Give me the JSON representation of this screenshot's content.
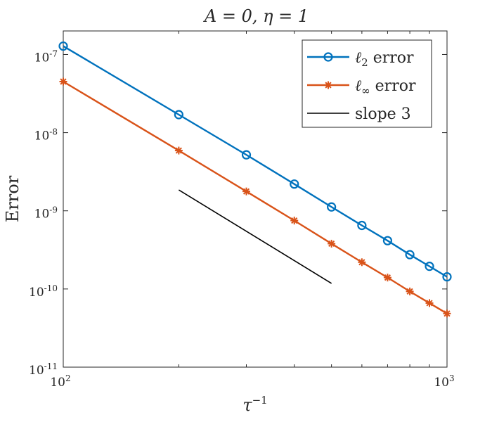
{
  "chart_data": {
    "type": "line",
    "title": "A = 0,  η = 1",
    "xlabel": "τ⁻¹",
    "ylabel": "Error",
    "x_scale": "log",
    "y_scale": "log",
    "xlim": [
      100,
      1000
    ],
    "ylim": [
      1e-11,
      2e-07
    ],
    "x_ticks": [
      {
        "base": "10",
        "exp": "2"
      },
      {
        "base": "10",
        "exp": "3"
      }
    ],
    "y_ticks": [
      {
        "base": "10",
        "exp": "-11",
        "value": 1e-11
      },
      {
        "base": "10",
        "exp": "-10",
        "value": 1e-10
      },
      {
        "base": "10",
        "exp": "-9",
        "value": 1e-09
      },
      {
        "base": "10",
        "exp": "-8",
        "value": 1e-08
      },
      {
        "base": "10",
        "exp": "-7",
        "value": 1e-07
      }
    ],
    "grid": false,
    "legend_position": "top-right",
    "series": [
      {
        "name": "ℓ2 error",
        "name_base": "ℓ",
        "name_sub": "2",
        "name_rest": " error",
        "color": "#0072BD",
        "marker": "circle",
        "x": [
          100,
          200,
          300,
          400,
          500,
          600,
          700,
          800,
          900,
          1000
        ],
        "y": [
          1.28e-07,
          1.7e-08,
          5.2e-09,
          2.2e-09,
          1.12e-09,
          6.5e-10,
          4.15e-10,
          2.75e-10,
          1.95e-10,
          1.43e-10
        ]
      },
      {
        "name": "ℓ∞ error",
        "name_base": "ℓ",
        "name_sub": "∞",
        "name_rest": " error",
        "color": "#D95319",
        "marker": "asterisk",
        "x": [
          100,
          200,
          300,
          400,
          500,
          600,
          700,
          800,
          900,
          1000
        ],
        "y": [
          4.5e-08,
          5.9e-09,
          1.77e-09,
          7.5e-10,
          3.8e-10,
          2.2e-10,
          1.4e-10,
          9.3e-11,
          6.6e-11,
          4.85e-11
        ]
      },
      {
        "name": "slope 3",
        "name_base": "slope 3",
        "name_sub": "",
        "name_rest": "",
        "color": "#000000",
        "marker": "none",
        "x": [
          200,
          500
        ],
        "y": [
          1.85e-09,
          1.18e-10
        ]
      }
    ]
  }
}
